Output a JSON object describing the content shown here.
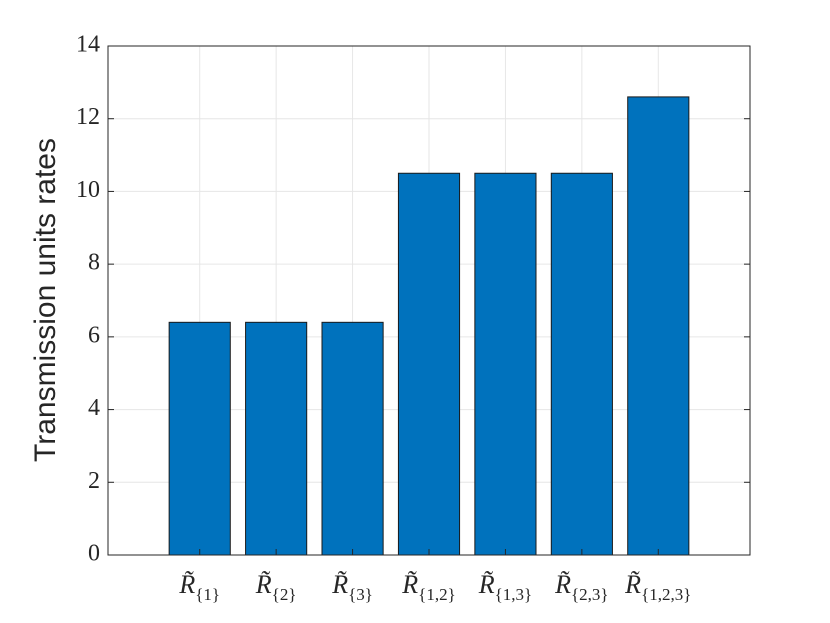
{
  "chart_data": {
    "type": "bar",
    "ylabel": "Transmission units rates",
    "categories": [
      "R̃{1}",
      "R̃{2}",
      "R̃{3}",
      "R̃{1,2}",
      "R̃{1,3}",
      "R̃{2,3}",
      "R̃{1,2,3}"
    ],
    "values": [
      6.4,
      6.4,
      6.4,
      10.5,
      10.5,
      10.5,
      12.6
    ],
    "color": "#0072bd",
    "ylim": [
      0,
      14
    ],
    "yticks": [
      0,
      2,
      4,
      6,
      8,
      10,
      12,
      14
    ],
    "grid": true
  }
}
